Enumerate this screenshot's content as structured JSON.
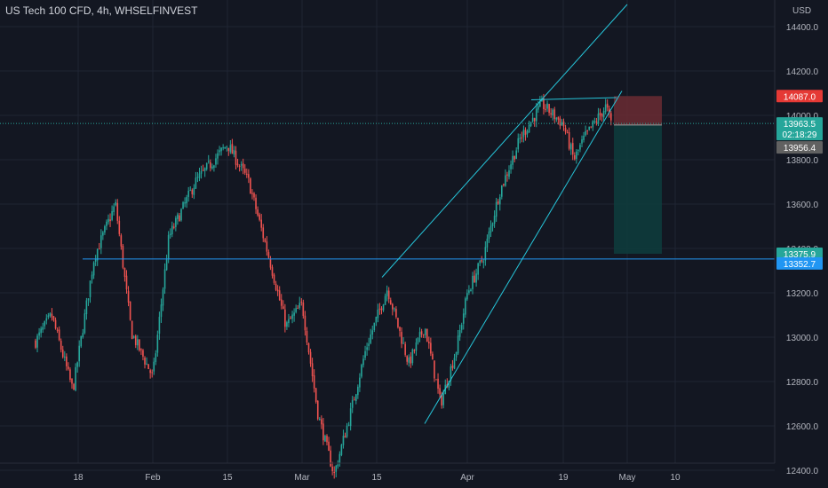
{
  "header": {
    "title": "US Tech 100 CFD, 4h, WHSELFINVEST",
    "currency": "USD"
  },
  "colors": {
    "background": "#131722",
    "grid": "#1f2433",
    "axis_text": "#b2b5be",
    "up": "#26a69a",
    "down": "#ef5350",
    "trendline": "#26c6da",
    "support_line": "#2196f3",
    "stop_zone": "#6b2b33",
    "target_zone": "#0e3b3c",
    "tag_stop": "#e53935",
    "tag_current": "#26a69a",
    "tag_gray": "#616161",
    "tag_target": "#26a69a",
    "tag_support": "#2196f3"
  },
  "chart_data": {
    "type": "candlestick",
    "symbol": "US Tech 100 CFD",
    "interval": "4h",
    "y_ticks": [
      "14400.0",
      "14200.0",
      "14000.0",
      "13800.0",
      "13600.0",
      "13400.0",
      "13200.0",
      "13000.0",
      "12800.0",
      "12600.0",
      "12400.0"
    ],
    "x_ticks": [
      "18",
      "Feb",
      "15",
      "Mar",
      "15",
      "Apr",
      "19",
      "May",
      "10"
    ],
    "ylim": [
      12280,
      14420
    ],
    "grid": true,
    "anchors": [
      {
        "label": "Jan 10",
        "price": 12980
      },
      {
        "label": "Jan 13",
        "price": 13100
      },
      {
        "label": "Jan 17",
        "price": 12760
      },
      {
        "label": "Jan 21",
        "price": 13360
      },
      {
        "label": "Jan 25",
        "price": 13600
      },
      {
        "label": "Jan 28",
        "price": 13020
      },
      {
        "label": "Feb 1",
        "price": 12820
      },
      {
        "label": "Feb 4",
        "price": 13450
      },
      {
        "label": "Feb 9",
        "price": 13700
      },
      {
        "label": "Feb 15",
        "price": 13870
      },
      {
        "label": "Feb 19",
        "price": 13700
      },
      {
        "label": "Feb 23",
        "price": 13340
      },
      {
        "label": "Feb 26",
        "price": 13050
      },
      {
        "label": "Mar 1",
        "price": 13150
      },
      {
        "label": "Mar 4",
        "price": 12650
      },
      {
        "label": "Mar 7",
        "price": 12380
      },
      {
        "label": "Mar 10",
        "price": 12650
      },
      {
        "label": "Mar 13",
        "price": 12950
      },
      {
        "label": "Mar 17",
        "price": 13220
      },
      {
        "label": "Mar 21",
        "price": 12880
      },
      {
        "label": "Mar 24",
        "price": 13050
      },
      {
        "label": "Mar 27",
        "price": 12700
      },
      {
        "label": "Mar 30",
        "price": 12950
      },
      {
        "label": "Apr 1",
        "price": 13200
      },
      {
        "label": "Apr 4",
        "price": 13360
      },
      {
        "label": "Apr 7",
        "price": 13650
      },
      {
        "label": "Apr 11",
        "price": 13900
      },
      {
        "label": "Apr 15",
        "price": 14050
      },
      {
        "label": "Apr 19",
        "price": 13960
      },
      {
        "label": "Apr 21",
        "price": 13800
      },
      {
        "label": "Apr 23",
        "price": 13900
      },
      {
        "label": "Apr 27",
        "price": 14040
      },
      {
        "label": "Apr 28",
        "price": 13963.5
      }
    ],
    "drawings": {
      "support_level": 13352.7,
      "lower_trendline": [
        {
          "date": "Mar 24",
          "price": 12610
        },
        {
          "date": "Apr 30",
          "price": 14110
        }
      ],
      "upper_trendline": [
        {
          "date": "Mar 16",
          "price": 13270
        },
        {
          "date": "May 1",
          "price": 14500
        }
      ],
      "resistance_line": [
        {
          "date": "Apr 13",
          "price": 14070
        },
        {
          "date": "Apr 29",
          "price": 14080
        }
      ],
      "short_position": {
        "entry": 13956.4,
        "stop": 14087.0,
        "target": 13375.9
      }
    },
    "price_tags": {
      "stop": "14087.0",
      "current": "13963.5",
      "countdown": "02:18:29",
      "entry": "13956.4",
      "target": "13375.9",
      "support": "13352.7"
    }
  }
}
